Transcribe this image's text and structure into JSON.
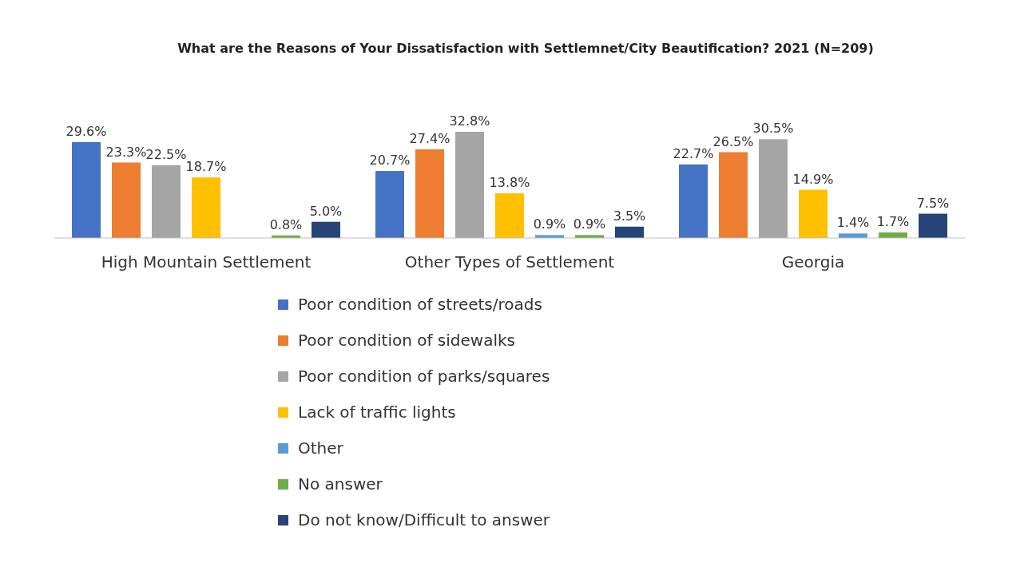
{
  "chart_data": {
    "type": "bar",
    "title": "What are the Reasons of Your Dissatisfaction with Settlemnet/City Beautification? 2021 (N=209)",
    "categories": [
      "High Mountain Settlement",
      "Other Types of Settlement",
      "Georgia"
    ],
    "legend": "bottom",
    "series": [
      {
        "name": "Poor condition of streets/roads",
        "color": "#4472c4",
        "values": [
          29.6,
          20.7,
          22.7
        ],
        "value_labels": [
          "29.6%",
          "20.7%",
          "22.7%"
        ]
      },
      {
        "name": "Poor condition of sidewalks",
        "color": "#ed7d31",
        "values": [
          23.3,
          27.4,
          26.5
        ],
        "value_labels": [
          "23.3%",
          "27.4%",
          "26.5%"
        ]
      },
      {
        "name": "Poor condition of parks/squares",
        "color": "#a5a5a5",
        "values": [
          22.5,
          32.8,
          30.5
        ],
        "value_labels": [
          "22.5%",
          "32.8%",
          "30.5%"
        ]
      },
      {
        "name": "Lack of traffic lights",
        "color": "#ffc000",
        "values": [
          18.7,
          13.8,
          14.9
        ],
        "value_labels": [
          "18.7%",
          "13.8%",
          "14.9%"
        ]
      },
      {
        "name": "Other",
        "color": "#5b9bd5",
        "values": [
          null,
          0.9,
          1.4
        ],
        "value_labels": [
          null,
          "0.9%",
          "1.4%"
        ]
      },
      {
        "name": "No answer",
        "color": "#70ad47",
        "values": [
          0.8,
          0.9,
          1.7
        ],
        "value_labels": [
          "0.8%",
          "0.9%",
          "1.7%"
        ]
      },
      {
        "name": "Do not know/Difficult to answer",
        "color": "#264478",
        "values": [
          5.0,
          3.5,
          7.5
        ],
        "value_labels": [
          "5.0%",
          "3.5%",
          "7.5%"
        ]
      }
    ]
  }
}
